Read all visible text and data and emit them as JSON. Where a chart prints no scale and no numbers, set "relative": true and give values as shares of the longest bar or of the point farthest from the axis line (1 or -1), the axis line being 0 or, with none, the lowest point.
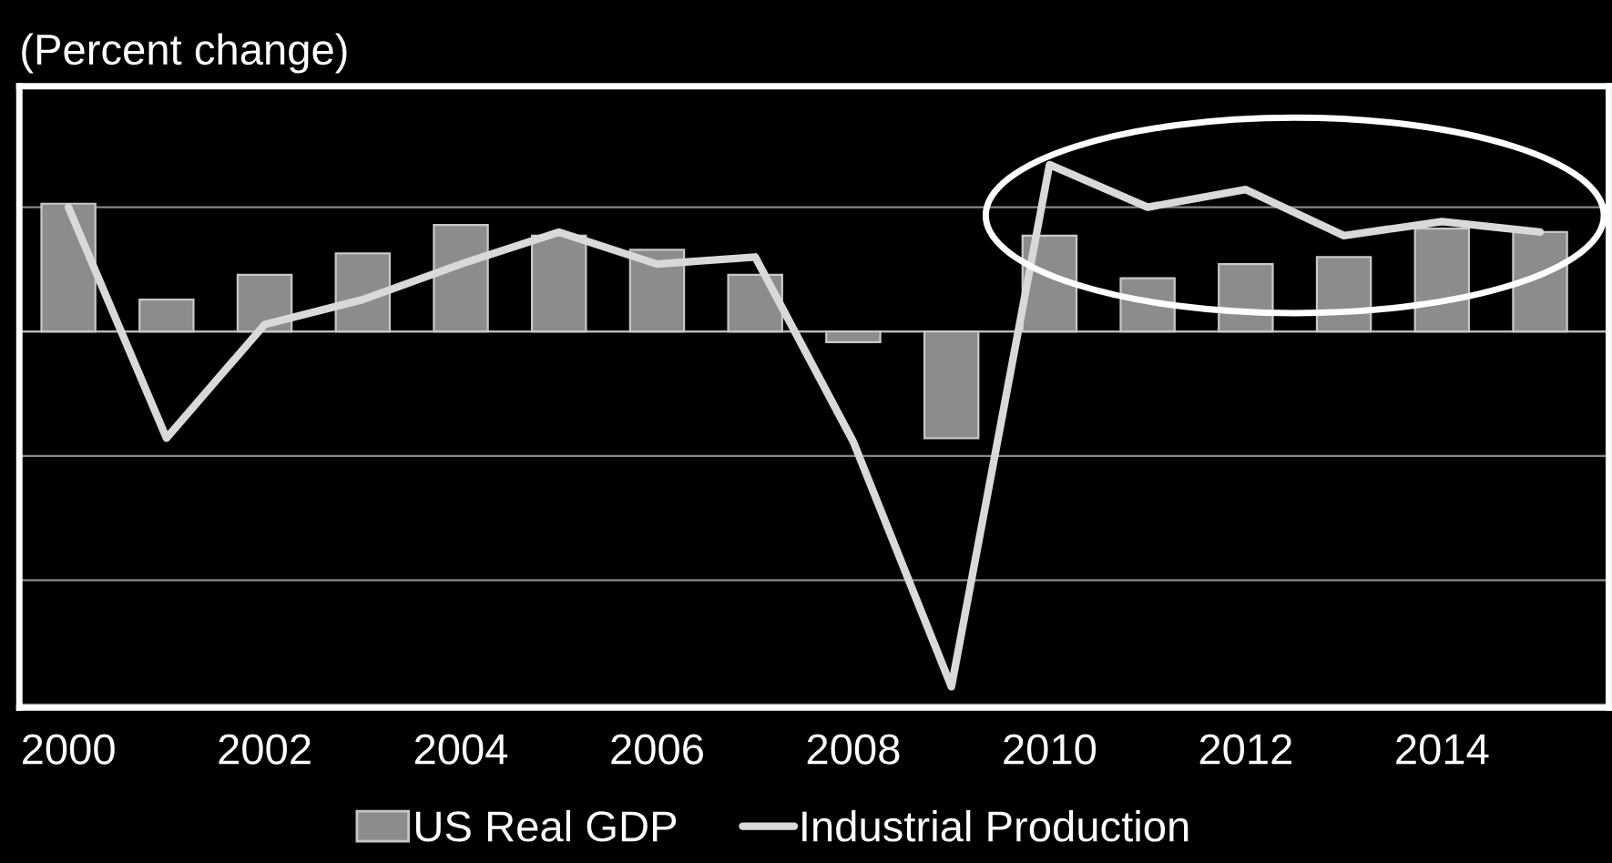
{
  "chart_data": {
    "type": "bar",
    "title": "(Percent change)",
    "relative": true,
    "x": [
      2000,
      2001,
      2002,
      2003,
      2004,
      2005,
      2006,
      2007,
      2008,
      2009,
      2010,
      2011,
      2012,
      2013,
      2014,
      2015
    ],
    "xlim": [
      1999.5,
      2015.7
    ],
    "xticks": [
      2000,
      2002,
      2004,
      2006,
      2008,
      2010,
      2012,
      2014
    ],
    "series": [
      {
        "name": "US Real GDP",
        "color": "#8c8c8c",
        "values": [
          0.36,
          0.09,
          0.16,
          0.22,
          0.3,
          0.27,
          0.23,
          0.16,
          -0.03,
          -0.3,
          0.27,
          0.15,
          0.19,
          0.21,
          0.29,
          0.28
        ]
      },
      {
        "name": "Industrial Production",
        "type": "line",
        "color": "#d9d9d9",
        "values": [
          0.35,
          -0.3,
          0.02,
          0.09,
          0.19,
          0.28,
          0.19,
          0.21,
          -0.31,
          -1,
          0.47,
          0.35,
          0.4,
          0.27,
          0.31,
          0.28
        ]
      }
    ],
    "grid": "y",
    "legend": "bottom"
  }
}
